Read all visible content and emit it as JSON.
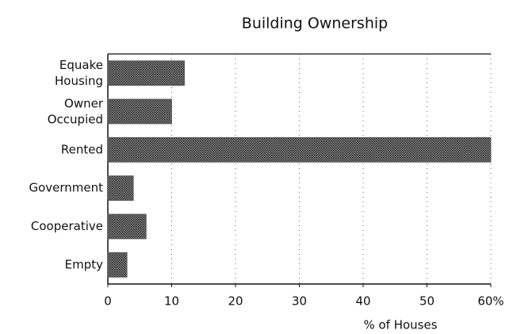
{
  "chart_data": {
    "type": "bar",
    "orientation": "horizontal",
    "title": "Building Ownership",
    "categories": [
      "Equake Housing",
      "Owner Occupied",
      "Rented",
      "Government",
      "Cooperative",
      "Empty"
    ],
    "values": [
      12,
      10,
      60,
      4,
      6,
      3
    ],
    "color": "#555555",
    "xlim": [
      0,
      60
    ],
    "xticks": [
      0,
      10,
      20,
      30,
      40,
      50,
      {
        "value": 60,
        "label": "60%"
      }
    ],
    "xlabel": "% of Houses",
    "grid": true
  }
}
